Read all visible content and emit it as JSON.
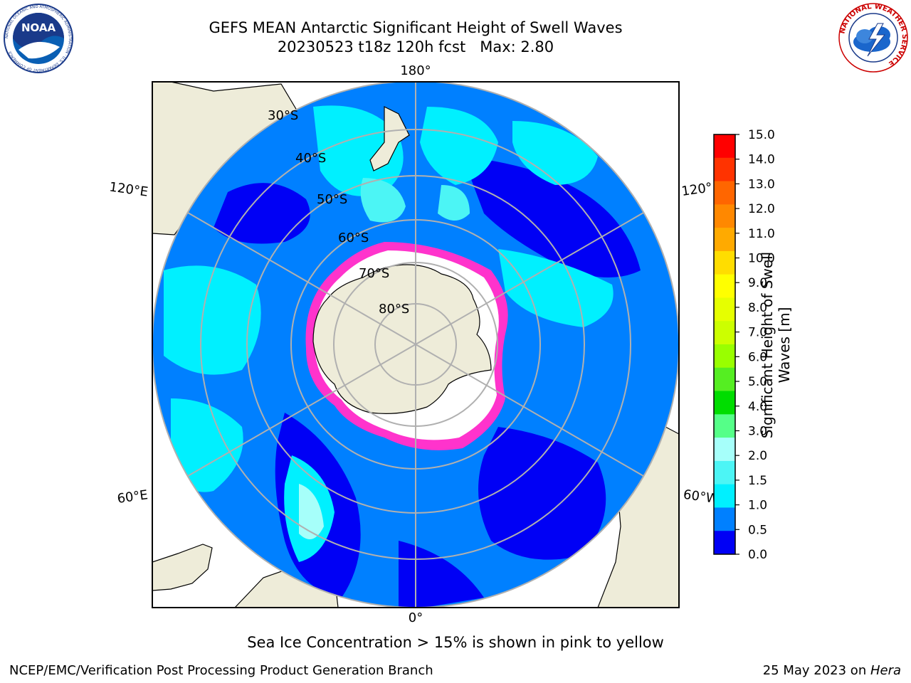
{
  "title": {
    "line1": "GEFS MEAN Antarctic Significant Height of Swell Waves",
    "line2": "20230523 t18z 120h fcst   Max: 2.80"
  },
  "logos": {
    "noaa_text": "NOAA",
    "noaa_ring_text": "NATIONAL OCEANIC AND ATMOSPHERIC ADMINISTRATION · U.S. DEPARTMENT OF COMMERCE",
    "nws_ring_text": "NATIONAL WEATHER SERVICE"
  },
  "map": {
    "projection": "south polar stereographic",
    "longitude_labels": [
      "180°",
      "120°E",
      "120°",
      "60°E",
      "60°W",
      "0°"
    ],
    "latitude_labels": [
      "30°S",
      "40°S",
      "50°S",
      "60°S",
      "70°S",
      "80°S"
    ],
    "colors": {
      "land": "#eeecd9",
      "ocean_0_0_5": "#0000f5",
      "ocean_0_5_1_0": "#0080ff",
      "ocean_1_0_1_5": "#00f0ff",
      "ocean_1_5_2_0": "#4cf5f5",
      "ocean_2_0_2_5": "#a6fffa",
      "sea_ice": "#ff33cc",
      "graticule": "#b0b0b0"
    }
  },
  "colorbar": {
    "label": "Significant Height of Swell Waves [m]",
    "ticks": [
      "15.0",
      "14.0",
      "13.0",
      "12.0",
      "11.0",
      "10.0",
      "9.0",
      "8.0",
      "7.0",
      "6.0",
      "5.0",
      "4.0",
      "3.0",
      "2.0",
      "1.5",
      "1.0",
      "0.5",
      "0.0"
    ],
    "colors": [
      "#ff0000",
      "#ff3300",
      "#ff6600",
      "#ff8800",
      "#ffaa00",
      "#ffdd00",
      "#ffff00",
      "#e6ff00",
      "#ccff00",
      "#99ff00",
      "#55ee22",
      "#00dd00",
      "#55ff88",
      "#a6fffa",
      "#4cf5f5",
      "#00f0ff",
      "#0080ff",
      "#0000f5"
    ]
  },
  "note": "Sea Ice Concentration > 15% is shown in pink to yellow",
  "footer": {
    "left": "NCEP/EMC/Verification Post Processing Product Generation Branch",
    "right_prefix": "25 May 2023 on ",
    "right_host": "Hera"
  }
}
